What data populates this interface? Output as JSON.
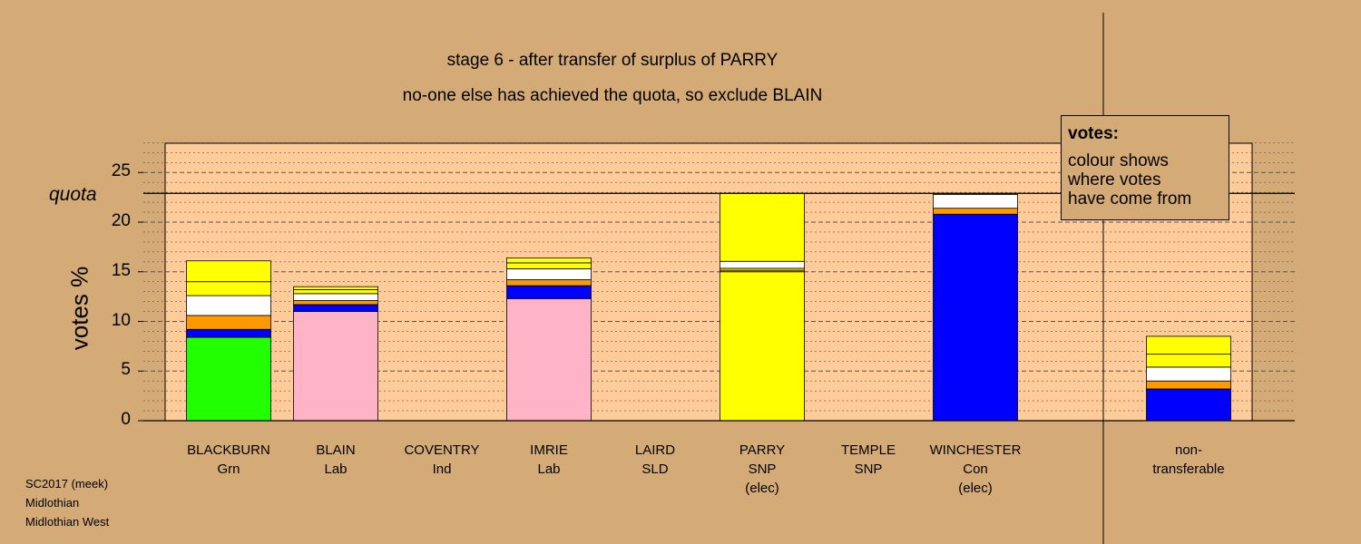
{
  "title_line1": "stage 6 - after transfer of surplus of PARRY",
  "title_line2": "no-one else has achieved the quota, so exclude BLAIN",
  "ylabel": "votes %",
  "quota_label": "quota",
  "legend": {
    "title": "votes:",
    "text": "colour shows\nwhere votes\nhave come from"
  },
  "footer": [
    "SC2017 (meek)",
    "Midlothian",
    "Midlothian West"
  ],
  "colors": {
    "background": "#d4aa77",
    "plot_area": "#ffcc99",
    "green": "#22ff00",
    "blue": "#0000ff",
    "orange": "#ff9900",
    "white": "#ffffff",
    "yellow": "#ffff00",
    "pink": "#ffb3c6"
  },
  "chart_data": {
    "type": "bar",
    "stacked": true,
    "ylim": [
      0,
      28
    ],
    "yticks": [
      0,
      5,
      10,
      15,
      20,
      25
    ],
    "quota": 22.9,
    "categories": [
      {
        "name": "BLACKBURN",
        "party": "Grn",
        "status": ""
      },
      {
        "name": "BLAIN",
        "party": "Lab",
        "status": ""
      },
      {
        "name": "COVENTRY",
        "party": "Ind",
        "status": ""
      },
      {
        "name": "IMRIE",
        "party": "Lab",
        "status": ""
      },
      {
        "name": "LAIRD",
        "party": "SLD",
        "status": ""
      },
      {
        "name": "PARRY",
        "party": "SNP",
        "status": "(elec)"
      },
      {
        "name": "TEMPLE",
        "party": "SNP",
        "status": ""
      },
      {
        "name": "WINCHESTER",
        "party": "Con",
        "status": "(elec)"
      },
      {
        "name": "non-",
        "party": "transferable",
        "status": ""
      }
    ],
    "bars": [
      [
        {
          "color": "green",
          "value": 8.4
        },
        {
          "color": "blue",
          "value": 0.8
        },
        {
          "color": "orange",
          "value": 1.4
        },
        {
          "color": "white",
          "value": 2.0
        },
        {
          "color": "yellow",
          "value": 1.4
        },
        {
          "color": "yellow",
          "value": 2.1
        }
      ],
      [
        {
          "color": "pink",
          "value": 11.0
        },
        {
          "color": "blue",
          "value": 0.7
        },
        {
          "color": "orange",
          "value": 0.4
        },
        {
          "color": "white",
          "value": 0.7
        },
        {
          "color": "yellow",
          "value": 0.4
        },
        {
          "color": "yellow",
          "value": 0.3
        }
      ],
      [],
      [
        {
          "color": "pink",
          "value": 12.3
        },
        {
          "color": "blue",
          "value": 1.3
        },
        {
          "color": "orange",
          "value": 0.6
        },
        {
          "color": "white",
          "value": 1.1
        },
        {
          "color": "yellow",
          "value": 0.6
        },
        {
          "color": "yellow",
          "value": 0.5
        }
      ],
      [],
      [
        {
          "color": "yellow",
          "value": 15.0
        },
        {
          "color": "orange",
          "value": 0.15
        },
        {
          "color": "yellow",
          "value": 0.2
        },
        {
          "color": "white",
          "value": 0.7
        },
        {
          "color": "yellow",
          "value": 6.85
        }
      ],
      [],
      [
        {
          "color": "blue",
          "value": 20.8
        },
        {
          "color": "orange",
          "value": 0.6
        },
        {
          "color": "white",
          "value": 1.4
        },
        {
          "color": "yellow",
          "value": 0.1
        }
      ],
      [
        {
          "color": "blue",
          "value": 3.2
        },
        {
          "color": "orange",
          "value": 0.8
        },
        {
          "color": "white",
          "value": 1.4
        },
        {
          "color": "yellow",
          "value": 1.3
        },
        {
          "color": "yellow",
          "value": 1.8
        }
      ]
    ]
  }
}
